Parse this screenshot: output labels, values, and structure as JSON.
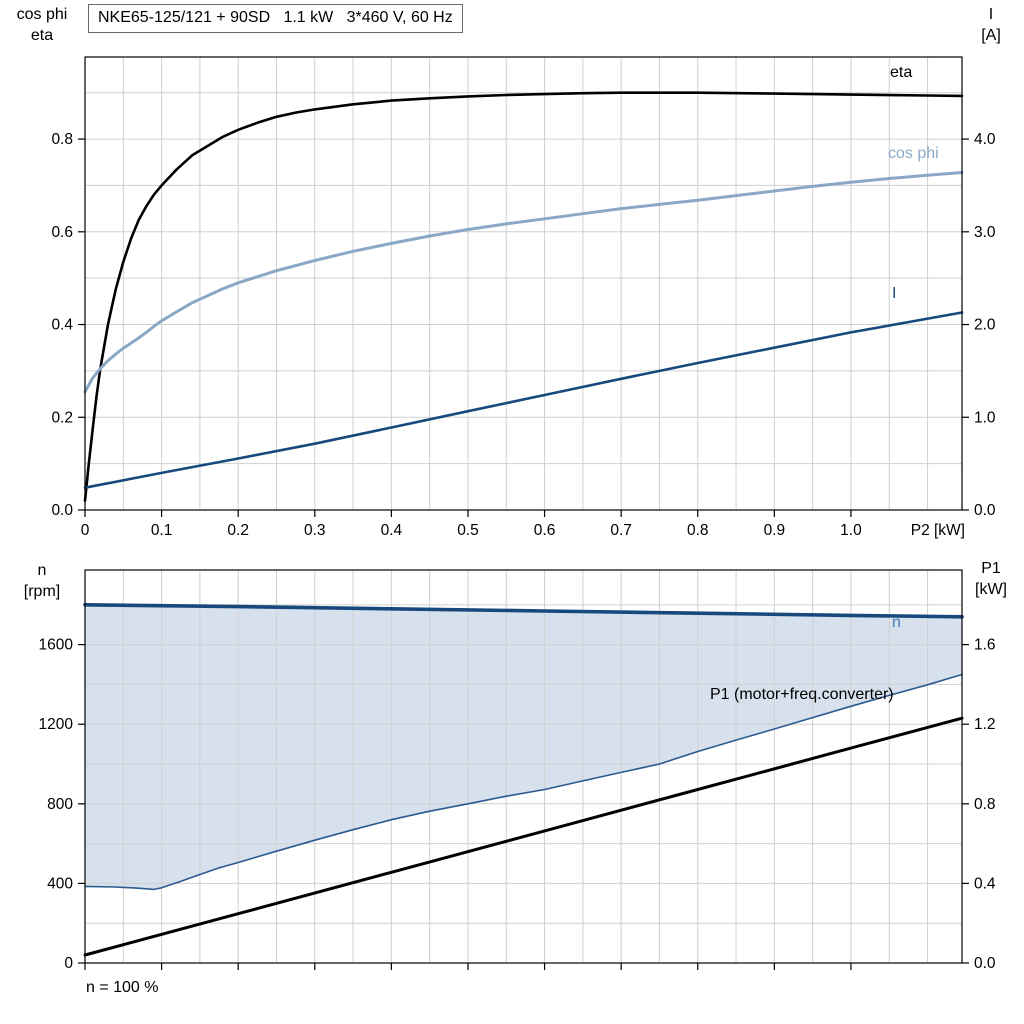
{
  "chart_data": [
    {
      "type": "line",
      "title": "NKE65-125/121 + 90SD   1.1 kW   3*460 V, 60 Hz",
      "x_axis": {
        "label": "P2 [kW]",
        "min": 0,
        "max": 1.145,
        "minor_step": 0.05,
        "ticks": [
          0,
          0.1,
          0.2,
          0.3,
          0.4,
          0.5,
          0.6,
          0.7,
          0.8,
          0.9,
          1.0
        ],
        "tick_labels": [
          "0",
          "0.1",
          "0.2",
          "0.3",
          "0.4",
          "0.5",
          "0.6",
          "0.7",
          "0.8",
          "0.9",
          "1.0"
        ]
      },
      "y_left": {
        "label_lines": [
          "cos phi",
          "eta"
        ],
        "min": 0,
        "max": 0.977,
        "minor_step": 0.1,
        "ticks": [
          0,
          0.2,
          0.4,
          0.6,
          0.8
        ],
        "tick_labels": [
          "0.0",
          "0.2",
          "0.4",
          "0.6",
          "0.8"
        ]
      },
      "y_right": {
        "label_lines": [
          "I",
          "[A]"
        ],
        "min": 0,
        "max": 4.885,
        "ticks": [
          0,
          1,
          2,
          3,
          4
        ],
        "tick_labels": [
          "0.0",
          "1.0",
          "2.0",
          "3.0",
          "4.0"
        ]
      },
      "series": [
        {
          "name": "eta",
          "axis": "left",
          "color": "#000000",
          "width": 2.6,
          "points": [
            [
              0,
              0.02
            ],
            [
              0.005,
              0.1
            ],
            [
              0.01,
              0.175
            ],
            [
              0.015,
              0.245
            ],
            [
              0.02,
              0.305
            ],
            [
              0.03,
              0.4
            ],
            [
              0.04,
              0.475
            ],
            [
              0.05,
              0.535
            ],
            [
              0.06,
              0.585
            ],
            [
              0.07,
              0.625
            ],
            [
              0.08,
              0.655
            ],
            [
              0.09,
              0.68
            ],
            [
              0.1,
              0.7
            ],
            [
              0.12,
              0.735
            ],
            [
              0.14,
              0.765
            ],
            [
              0.16,
              0.785
            ],
            [
              0.18,
              0.805
            ],
            [
              0.2,
              0.82
            ],
            [
              0.225,
              0.835
            ],
            [
              0.25,
              0.848
            ],
            [
              0.275,
              0.857
            ],
            [
              0.3,
              0.864
            ],
            [
              0.35,
              0.875
            ],
            [
              0.4,
              0.883
            ],
            [
              0.45,
              0.888
            ],
            [
              0.5,
              0.892
            ],
            [
              0.55,
              0.895
            ],
            [
              0.6,
              0.897
            ],
            [
              0.65,
              0.899
            ],
            [
              0.7,
              0.9
            ],
            [
              0.8,
              0.9
            ],
            [
              0.9,
              0.898
            ],
            [
              1.0,
              0.896
            ],
            [
              1.1,
              0.894
            ],
            [
              1.145,
              0.893
            ]
          ]
        },
        {
          "name": "cos phi",
          "axis": "left",
          "color": "#8aa8c6",
          "width": 3,
          "points": [
            [
              0,
              0.255
            ],
            [
              0.01,
              0.285
            ],
            [
              0.02,
              0.305
            ],
            [
              0.03,
              0.322
            ],
            [
              0.04,
              0.336
            ],
            [
              0.05,
              0.349
            ],
            [
              0.06,
              0.36
            ],
            [
              0.07,
              0.371
            ],
            [
              0.08,
              0.383
            ],
            [
              0.09,
              0.396
            ],
            [
              0.1,
              0.408
            ],
            [
              0.12,
              0.428
            ],
            [
              0.14,
              0.447
            ],
            [
              0.16,
              0.462
            ],
            [
              0.18,
              0.477
            ],
            [
              0.2,
              0.49
            ],
            [
              0.25,
              0.516
            ],
            [
              0.3,
              0.538
            ],
            [
              0.35,
              0.558
            ],
            [
              0.4,
              0.575
            ],
            [
              0.45,
              0.591
            ],
            [
              0.5,
              0.605
            ],
            [
              0.55,
              0.617
            ],
            [
              0.6,
              0.628
            ],
            [
              0.65,
              0.639
            ],
            [
              0.7,
              0.65
            ],
            [
              0.75,
              0.659
            ],
            [
              0.8,
              0.668
            ],
            [
              0.85,
              0.678
            ],
            [
              0.9,
              0.688
            ],
            [
              0.95,
              0.698
            ],
            [
              1.0,
              0.707
            ],
            [
              1.05,
              0.715
            ],
            [
              1.1,
              0.722
            ],
            [
              1.145,
              0.728
            ]
          ]
        },
        {
          "name": "I",
          "axis": "right",
          "color": "#17497d",
          "width": 2.6,
          "points": [
            [
              0,
              0.24
            ],
            [
              0.1,
              0.4
            ],
            [
              0.2,
              0.555
            ],
            [
              0.3,
              0.715
            ],
            [
              0.4,
              0.89
            ],
            [
              0.5,
              1.065
            ],
            [
              0.6,
              1.24
            ],
            [
              0.7,
              1.415
            ],
            [
              0.8,
              1.585
            ],
            [
              0.9,
              1.75
            ],
            [
              1.0,
              1.915
            ],
            [
              1.145,
              2.13
            ]
          ]
        }
      ],
      "label_colors": {
        "eta": "#000000",
        "cos_phi": "#8aa8c6",
        "I": "#17497d"
      }
    },
    {
      "type": "line+area",
      "note": "n = 100 %",
      "x_axis": {
        "label": "",
        "min": 0,
        "max": 1.145,
        "minor_step": 0.05,
        "ticks": [
          0,
          0.1,
          0.2,
          0.3,
          0.4,
          0.5,
          0.6,
          0.7,
          0.8,
          0.9,
          1.0
        ],
        "tick_labels": []
      },
      "y_left": {
        "label_lines": [
          "n",
          "[rpm]"
        ],
        "min": 0,
        "max": 1975,
        "minor_step": 200,
        "ticks": [
          0,
          400,
          800,
          1200,
          1600
        ],
        "tick_labels": [
          "0",
          "400",
          "800",
          "1200",
          "1600"
        ]
      },
      "y_right": {
        "label_lines": [
          "P1",
          "[kW]"
        ],
        "min": 0,
        "max": 1.975,
        "ticks": [
          0,
          0.4,
          0.8,
          1.2,
          1.6
        ],
        "tick_labels": [
          "0.0",
          "0.4",
          "0.8",
          "1.2",
          "1.6"
        ]
      },
      "area": {
        "name": "speed-operating-range",
        "upper": "n",
        "lower": "speed-range-lower",
        "fill": "#d2deeb",
        "opacity": 0.9
      },
      "series": [
        {
          "name": "n",
          "axis": "left",
          "color": "#17497d",
          "width": 3.6,
          "points": [
            [
              0,
              1800
            ],
            [
              0.2,
              1791
            ],
            [
              0.4,
              1780
            ],
            [
              0.6,
              1769
            ],
            [
              0.8,
              1758
            ],
            [
              1.0,
              1747
            ],
            [
              1.145,
              1740
            ]
          ]
        },
        {
          "name": "speed-range-lower",
          "axis": "left",
          "color": "#2a5a8f",
          "width": 1.6,
          "points": [
            [
              0,
              385
            ],
            [
              0.04,
              382
            ],
            [
              0.07,
              376
            ],
            [
              0.09,
              370
            ],
            [
              0.1,
              378
            ],
            [
              0.125,
              410
            ],
            [
              0.15,
              445
            ],
            [
              0.175,
              478
            ],
            [
              0.2,
              505
            ],
            [
              0.25,
              562
            ],
            [
              0.3,
              617
            ],
            [
              0.35,
              670
            ],
            [
              0.4,
              720
            ],
            [
              0.45,
              763
            ],
            [
              0.5,
              800
            ],
            [
              0.55,
              838
            ],
            [
              0.6,
              872
            ],
            [
              0.65,
              915
            ],
            [
              0.7,
              958
            ],
            [
              0.75,
              1000
            ],
            [
              0.8,
              1063
            ],
            [
              0.85,
              1120
            ],
            [
              0.9,
              1176
            ],
            [
              0.95,
              1233
            ],
            [
              1.0,
              1290
            ],
            [
              1.05,
              1345
            ],
            [
              1.1,
              1398
            ],
            [
              1.145,
              1450
            ]
          ]
        },
        {
          "name": "P1 (motor+freq.converter)",
          "axis": "right",
          "color": "#000000",
          "width": 3,
          "points": [
            [
              0,
              0.04
            ],
            [
              0.2,
              0.248
            ],
            [
              0.4,
              0.456
            ],
            [
              0.6,
              0.664
            ],
            [
              0.8,
              0.872
            ],
            [
              1.0,
              1.08
            ],
            [
              1.145,
              1.23
            ]
          ]
        }
      ],
      "label_colors": {
        "n": "#4a7db6",
        "P1": "#000000"
      }
    }
  ]
}
